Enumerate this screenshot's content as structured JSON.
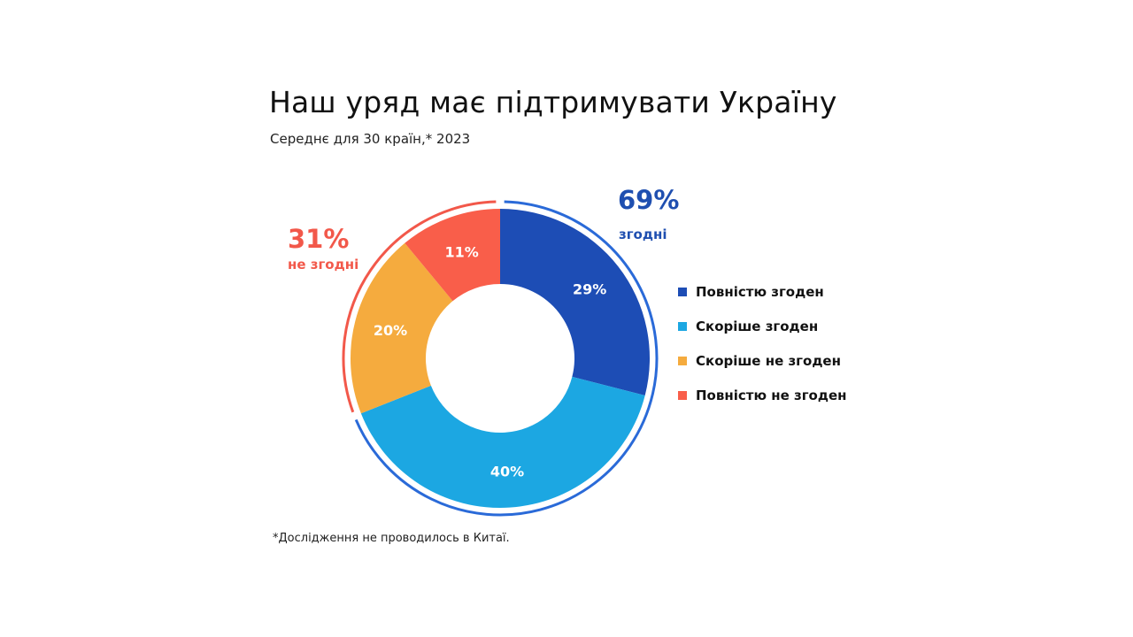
{
  "title": "Наш уряд має підтримувати Україну",
  "subtitle": "Середнє для 30 країн,* 2023",
  "footnote": "*Дослідження не проводилось в Китаї.",
  "groups": {
    "agree": {
      "pct": "69%",
      "label": "згодні",
      "color": "#2a6ad8",
      "text_color": "#1f4fb0"
    },
    "disagree": {
      "pct": "31%",
      "label": "не згодні",
      "color": "#f2584a",
      "text_color": "#f2584a"
    }
  },
  "chart_data": {
    "type": "pie",
    "donut": true,
    "categories": [
      "Повністю згоден",
      "Скоріше згоден",
      "Скоріше не згоден",
      "Повністю не згоден"
    ],
    "values": [
      29,
      40,
      20,
      11
    ],
    "labels": [
      "29%",
      "40%",
      "20%",
      "11%"
    ],
    "colors": [
      "#1d4db5",
      "#1ca7e2",
      "#f5ab3e",
      "#f95e4a"
    ],
    "legend_position": "right"
  }
}
